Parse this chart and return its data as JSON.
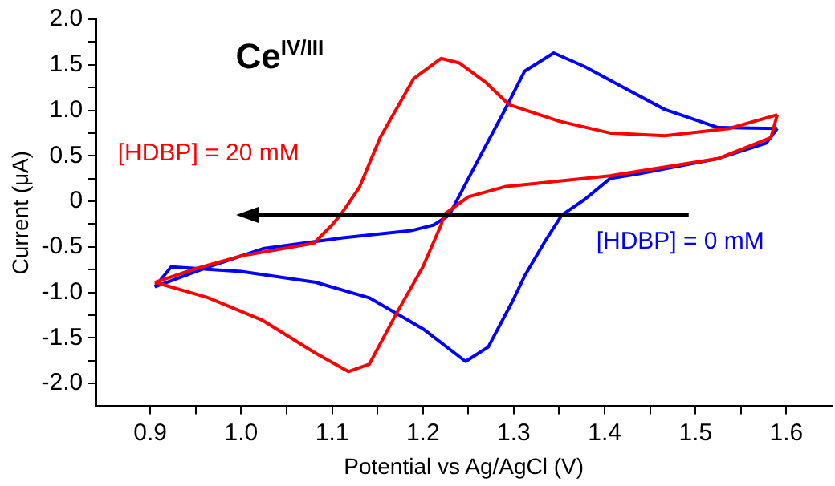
{
  "chart_data": {
    "type": "line",
    "title": "Ce$^{IV/III}$",
    "xlabel": "Potential vs Ag/AgCl (V)",
    "ylabel": "Current (μA)",
    "xlim": [
      0.84,
      1.65
    ],
    "ylim": [
      -2.25,
      2.0
    ],
    "xticks": [
      0.9,
      {
        "value": 0.95,
        "label": null
      },
      {
        "value": 1.0,
        "label": "1.0"
      },
      {
        "value": 1.05,
        "label": null
      },
      1.1,
      {
        "value": 1.15,
        "label": null
      },
      1.2,
      {
        "value": 1.25,
        "label": null
      },
      1.3,
      {
        "value": 1.35,
        "label": null
      },
      1.4,
      {
        "value": 1.45,
        "label": null
      },
      1.5,
      {
        "value": 1.55,
        "label": null
      },
      1.6
    ],
    "yticks": [
      {
        "value": -2.0,
        "label": "-2.0"
      },
      {
        "value": -1.75,
        "label": null
      },
      -1.5,
      {
        "value": -1.25,
        "label": null
      },
      {
        "value": -1.0,
        "label": "-1.0"
      },
      {
        "value": -0.75,
        "label": null
      },
      -0.5,
      {
        "value": -0.25,
        "label": null
      },
      0,
      {
        "value": 0.25,
        "label": null
      },
      0.5,
      {
        "value": 0.75,
        "label": null
      },
      {
        "value": 1.0,
        "label": "1.0"
      },
      {
        "value": 1.25,
        "label": null
      },
      1.5,
      {
        "value": 1.75,
        "label": null
      },
      {
        "value": 2.0,
        "label": "2.0"
      }
    ],
    "grid": false,
    "legend": false,
    "marker": "none",
    "line_style": "solid",
    "series": [
      {
        "name": "[HDBP] = 20 mM",
        "color": "#ff0000",
        "x": [
          0.905,
          0.95,
          1.0,
          1.08,
          1.1,
          1.11,
          1.13,
          1.153,
          1.19,
          1.22,
          1.24,
          1.27,
          1.295,
          1.35,
          1.406,
          1.466,
          1.537,
          1.59
        ],
        "values": [
          -0.89,
          -0.74,
          -0.6,
          -0.46,
          -0.26,
          -0.14,
          0.15,
          0.7,
          1.35,
          1.57,
          1.52,
          1.3,
          1.06,
          0.88,
          0.75,
          0.72,
          0.8,
          0.95
        ]
      },
      {
        "color": "#ff0000",
        "x": [
          1.59,
          1.583,
          1.525,
          1.406,
          1.29,
          1.25,
          1.224,
          1.22,
          1.2,
          1.171,
          1.141,
          1.118,
          1.082,
          1.024,
          0.964,
          0.905
        ],
        "values": [
          0.95,
          0.7,
          0.47,
          0.28,
          0.16,
          0.05,
          -0.14,
          -0.26,
          -0.72,
          -1.23,
          -1.79,
          -1.87,
          -1.67,
          -1.31,
          -1.06,
          -0.89
        ]
      },
      {
        "name": "[HDBP] = 0 mM",
        "color": "#0000ff",
        "x": [
          0.905,
          0.964,
          1.024,
          1.112,
          1.188,
          1.212,
          1.229,
          1.259,
          1.289,
          1.312,
          1.344,
          1.378,
          1.419,
          1.466,
          1.525,
          1.59
        ],
        "values": [
          -0.94,
          -0.72,
          -0.52,
          -0.4,
          -0.32,
          -0.26,
          -0.15,
          0.42,
          0.98,
          1.43,
          1.63,
          1.48,
          1.26,
          1.01,
          0.81,
          0.8
        ]
      },
      {
        "color": "#0000ff",
        "x": [
          1.59,
          1.578,
          1.525,
          1.436,
          1.406,
          1.378,
          1.353,
          1.335,
          1.312,
          1.298,
          1.272,
          1.247,
          1.2,
          1.141,
          1.082,
          1.0,
          0.923,
          0.905
        ],
        "values": [
          0.8,
          0.64,
          0.47,
          0.3,
          0.25,
          0.02,
          -0.15,
          -0.43,
          -0.82,
          -1.11,
          -1.6,
          -1.76,
          -1.4,
          -1.06,
          -0.89,
          -0.77,
          -0.72,
          -0.94
        ]
      }
    ]
  }
}
